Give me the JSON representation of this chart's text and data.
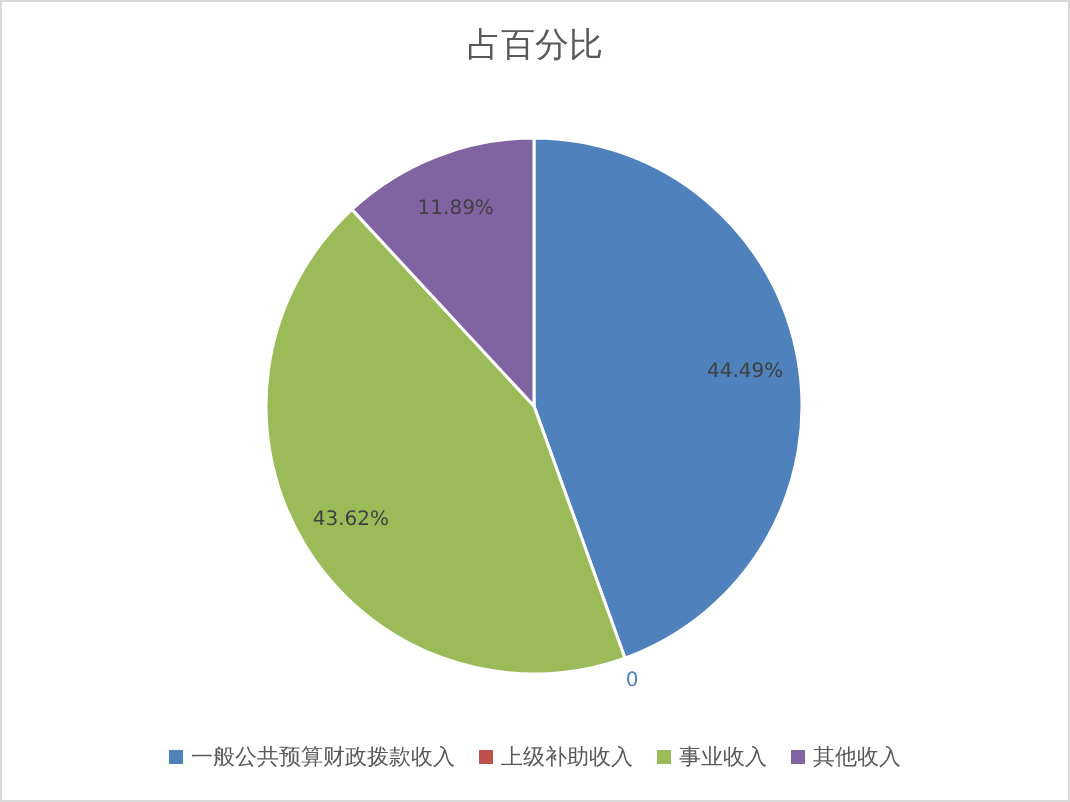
{
  "chart_data": {
    "type": "pie",
    "title": "占百分比",
    "categories": [
      "一般公共预算财政拨款收入",
      "上级补助收入",
      "事业收入",
      "其他收入"
    ],
    "values": [
      44.49,
      0,
      43.62,
      11.89
    ],
    "value_labels": [
      "44.49%",
      "0",
      "43.62%",
      "11.89%"
    ],
    "colors": [
      "#4f81bd",
      "#c0504d",
      "#9bbb59",
      "#8064a2"
    ],
    "legend": "bottom"
  }
}
